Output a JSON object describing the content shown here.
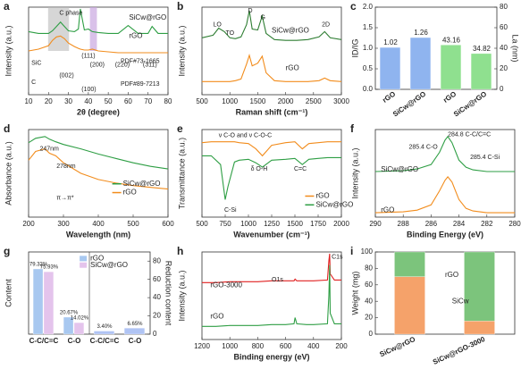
{
  "chart_data": [
    {
      "type": "line",
      "label": "a",
      "xlabel": "2θ (degree)",
      "ylabel": "Intensity (a.u.)",
      "x": [
        10,
        15,
        20,
        22,
        24,
        26,
        28,
        30,
        33,
        35,
        36,
        38,
        40,
        42,
        45,
        50,
        55,
        60,
        65,
        70,
        72,
        75,
        80
      ],
      "xlim": [
        10,
        80
      ],
      "xticks": [
        10,
        20,
        30,
        40,
        50,
        60,
        70,
        80
      ],
      "ylim": [
        0,
        10
      ],
      "series": [
        {
          "name": "SiCw@rGO",
          "color": "#2e9e44",
          "values": [
            7.2,
            7.0,
            7.0,
            7.3,
            7.8,
            8.3,
            7.8,
            7.3,
            7.2,
            7.5,
            9.8,
            7.4,
            7.5,
            7.2,
            7.1,
            7.0,
            7.0,
            7.9,
            7.0,
            7.0,
            7.8,
            7.0,
            7.0
          ]
        },
        {
          "name": "rGO",
          "color": "#f28c1c",
          "values": [
            5.0,
            5.2,
            5.6,
            6.2,
            6.6,
            6.7,
            6.4,
            5.9,
            5.5,
            5.3,
            5.2,
            5.1,
            5.1,
            5.2,
            5.0,
            4.9,
            4.8,
            4.8,
            4.8,
            4.8,
            4.8,
            4.8,
            4.8
          ]
        }
      ],
      "annotations": [
        "C phase",
        "SiC",
        "C",
        "PDF#73-1665",
        "PDF#89-7213",
        "(111)",
        "(200)",
        "(220)",
        "(311)",
        "(002)",
        "(100)"
      ]
    },
    {
      "type": "line",
      "label": "b",
      "xlabel": "Raman shift (cm⁻¹)",
      "ylabel": "Intensity (a.u.)",
      "x": [
        500,
        700,
        800,
        900,
        1000,
        1100,
        1200,
        1300,
        1350,
        1400,
        1500,
        1580,
        1650,
        1800,
        2000,
        2200,
        2400,
        2600,
        2700,
        2800,
        3000
      ],
      "xlim": [
        500,
        3000
      ],
      "xticks": [
        500,
        1000,
        1500,
        2000,
        2500,
        3000
      ],
      "ylim": [
        0,
        10
      ],
      "series": [
        {
          "name": "SiCw@rGO",
          "color": "#2e7d32",
          "values": [
            6.5,
            6.8,
            7.6,
            7.2,
            6.5,
            6.4,
            6.6,
            8.0,
            9.6,
            7.5,
            7.4,
            9.0,
            7.0,
            6.3,
            6.2,
            6.2,
            6.3,
            6.6,
            7.2,
            6.5,
            6.3
          ]
        },
        {
          "name": "rGO",
          "color": "#f28c1c",
          "values": [
            1.5,
            1.5,
            1.5,
            1.5,
            1.5,
            1.6,
            1.8,
            3.5,
            4.5,
            3.3,
            3.6,
            4.4,
            2.5,
            1.6,
            1.5,
            1.5,
            1.5,
            1.6,
            1.9,
            1.6,
            1.5
          ]
        }
      ],
      "annotations": [
        "LO",
        "TO",
        "D",
        "G",
        "2D"
      ]
    },
    {
      "type": "bar",
      "label": "c",
      "ylabel": "ID/IG",
      "y2label": "La (nm)",
      "categories": [
        "rGO",
        "SiCw@rGO",
        "rGO",
        "SiCw@rGO"
      ],
      "ylim": [
        0,
        2
      ],
      "yticks": [
        {
          "value": 0,
          "label": "0.0"
        },
        0.5,
        {
          "value": 1,
          "label": "1.0"
        },
        1.5,
        {
          "value": 2,
          "label": "2.0"
        }
      ],
      "y2lim": [
        0,
        80
      ],
      "y2ticks": [
        0,
        20,
        40,
        60,
        80
      ],
      "data_labels": true,
      "series": [
        {
          "color": "#8fb4ef",
          "values": [
            1.02,
            1.26,
            null,
            null
          ]
        },
        {
          "color": "#8fe08f",
          "axis": "y2",
          "values": [
            null,
            null,
            43.16,
            34.82
          ]
        }
      ]
    },
    {
      "type": "line",
      "label": "d",
      "xlabel": "Wavelength (nm)",
      "ylabel": "Absorbance (a.u.)",
      "x": [
        200,
        220,
        247,
        260,
        278,
        300,
        350,
        400,
        450,
        500,
        550,
        600
      ],
      "xlim": [
        200,
        600
      ],
      "xticks": [
        200,
        300,
        400,
        500,
        600
      ],
      "ylim": [
        0,
        10
      ],
      "series": [
        {
          "name": "SiCw@rGO",
          "color": "#2e9e44",
          "values": [
            8.5,
            9.0,
            9.2,
            8.9,
            8.6,
            8.3,
            7.8,
            7.2,
            6.7,
            6.2,
            5.8,
            5.5
          ]
        },
        {
          "name": "rGO",
          "color": "#f28c1c",
          "values": [
            6.5,
            7.5,
            7.8,
            7.3,
            7.0,
            6.2,
            5.0,
            4.3,
            3.9,
            3.6,
            3.4,
            3.2
          ]
        }
      ],
      "annotations": [
        "247nm",
        "278nm",
        "π→π*"
      ]
    },
    {
      "type": "line",
      "label": "e",
      "xlabel": "Wavenumber (cm⁻¹)",
      "ylabel": "Transmittance (a.u.)",
      "x": [
        500,
        600,
        700,
        750,
        780,
        850,
        900,
        1000,
        1080,
        1150,
        1250,
        1400,
        1500,
        1580,
        1650,
        1750,
        1850,
        2000
      ],
      "xlim": [
        500,
        2000
      ],
      "xticks": [
        500,
        750,
        1000,
        1250,
        1500,
        1750,
        2000
      ],
      "ylim": [
        0,
        10
      ],
      "series": [
        {
          "name": "rGO",
          "color": "#f28c1c",
          "values": [
            8.5,
            8.6,
            8.6,
            8.6,
            8.6,
            8.6,
            8.5,
            8.4,
            7.8,
            7.0,
            8.2,
            8.5,
            8.6,
            7.8,
            8.4,
            8.5,
            8.6,
            8.6
          ]
        },
        {
          "name": "SiCw@rGO",
          "color": "#2e9e44",
          "values": [
            7.0,
            7.0,
            6.0,
            2.0,
            3.5,
            6.3,
            6.5,
            6.6,
            6.2,
            5.7,
            6.5,
            6.6,
            6.7,
            6.0,
            6.6,
            6.7,
            6.8,
            6.8
          ]
        }
      ],
      "annotations": [
        "ν C-O and ν C-O-C",
        "δ O-H",
        "C=C",
        "C-Si"
      ]
    },
    {
      "type": "line",
      "label": "f",
      "xlabel": "Binding Energy (eV)",
      "ylabel": "Intensity (a.u.)",
      "x": [
        290,
        288,
        287,
        286,
        285.4,
        285,
        284.8,
        284.5,
        284,
        283.5,
        283,
        282,
        280
      ],
      "xlim": [
        290,
        280
      ],
      "xticks": [
        290,
        288,
        286,
        284,
        282,
        280
      ],
      "ylim": [
        0,
        10
      ],
      "series": [
        {
          "name": "SiCw@rGO",
          "color": "#2e9e44",
          "values": [
            5.2,
            5.3,
            5.5,
            6.0,
            7.4,
            8.8,
            9.2,
            8.5,
            6.5,
            5.7,
            5.4,
            5.2,
            5.2
          ]
        },
        {
          "name": "rGO",
          "color": "#f28c1c",
          "values": [
            0.5,
            0.6,
            0.8,
            1.4,
            3.0,
            4.2,
            4.6,
            4.0,
            2.0,
            1.0,
            0.7,
            0.5,
            0.5
          ]
        }
      ],
      "annotations": [
        "284.8 C-C/C=C",
        "285.4 C-O",
        "285.4 C-Si"
      ]
    },
    {
      "type": "bar",
      "label": "g",
      "ylabel": "Content",
      "y2label": "Reduction content",
      "categories": [
        "C-C/C=C",
        "C-O",
        "C-C/C=C",
        "C-O"
      ],
      "ylim": [
        0,
        100
      ],
      "y2lim": [
        0,
        90
      ],
      "y2ticks": [
        0,
        20,
        40,
        60,
        80
      ],
      "data_labels": true,
      "series": [
        {
          "name": "rGO",
          "color": "#a8c8f0",
          "values": [
            79.33,
            20.67,
            null,
            null
          ],
          "value_labels": [
            "79.33%",
            "20.67%",
            null,
            null
          ]
        },
        {
          "name": "SiCw@rGO",
          "color": "#e4c4ec",
          "values": [
            75.93,
            14.02,
            null,
            null
          ],
          "value_labels": [
            "75.93%",
            "14.02%",
            null,
            null
          ]
        },
        {
          "color": "#b0c4f4",
          "axis": "y2",
          "values": [
            null,
            null,
            3.4,
            6.65
          ],
          "value_labels": [
            null,
            null,
            "3.40%",
            "6.65%"
          ]
        }
      ]
    },
    {
      "type": "line",
      "label": "h",
      "xlabel": "Binding energy (eV)",
      "ylabel": "Intensity (a.u.)",
      "x": [
        1200,
        1100,
        1000,
        900,
        800,
        700,
        600,
        540,
        532,
        520,
        450,
        400,
        300,
        290,
        284,
        280,
        250,
        200
      ],
      "xlim": [
        1200,
        200
      ],
      "xticks": [
        1200,
        1000,
        800,
        600,
        400,
        200
      ],
      "ylim": [
        0,
        10
      ],
      "series": [
        {
          "name": "rGO-3000",
          "color": "#e02020",
          "values": [
            6.5,
            6.5,
            6.6,
            6.6,
            6.6,
            6.7,
            6.7,
            6.7,
            6.9,
            6.7,
            6.7,
            6.7,
            6.8,
            9.0,
            9.8,
            7.5,
            6.8,
            6.8
          ]
        },
        {
          "name": "rGO",
          "color": "#2e9e44",
          "values": [
            1.5,
            1.5,
            1.6,
            1.6,
            1.6,
            1.7,
            1.7,
            1.8,
            2.5,
            1.8,
            1.7,
            1.7,
            1.8,
            5.0,
            8.5,
            3.0,
            1.8,
            1.8
          ]
        }
      ],
      "annotations": [
        "C1s",
        "O1s"
      ]
    },
    {
      "type": "bar",
      "label": "i",
      "ylabel": "Weight (mg)",
      "stacked": true,
      "categories": [
        "SiCw@rGO",
        "SiCw@rGO-3000"
      ],
      "ylim": [
        0,
        100
      ],
      "yticks": [
        0,
        20,
        40,
        60,
        80,
        100
      ],
      "series": [
        {
          "name": "SiCw",
          "color": "#f5a26a",
          "values": [
            70,
            16
          ]
        },
        {
          "name": "rGO",
          "color": "#7cc47c",
          "values": [
            30,
            84
          ]
        }
      ]
    }
  ]
}
